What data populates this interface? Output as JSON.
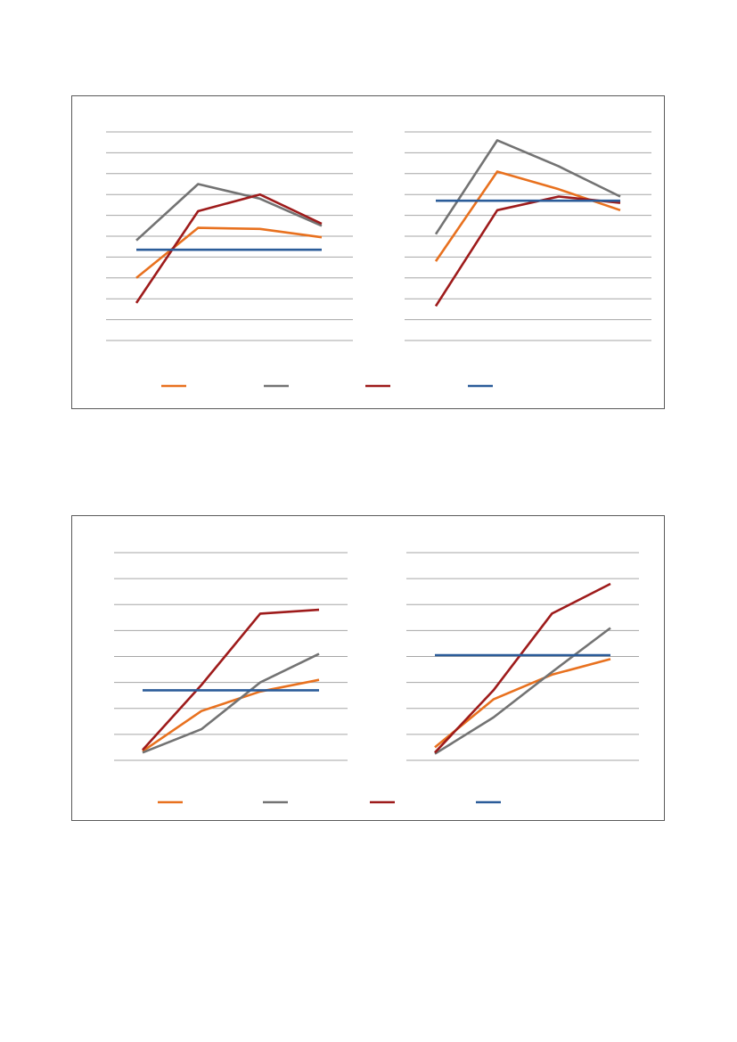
{
  "colors": {
    "orange": "#E8711F",
    "gray": "#737373",
    "darkred": "#9E1B1B",
    "blue": "#2B5C99",
    "grid": "#A6A6A6",
    "border": "#595959"
  },
  "figures": [
    {
      "legend": [
        {
          "color": "#E8711F"
        },
        {
          "color": "#737373"
        },
        {
          "color": "#9E1B1B"
        },
        {
          "color": "#2B5C99"
        }
      ],
      "chart_data": [
        {
          "type": "line",
          "x": [
            1,
            2,
            3,
            4
          ],
          "ylim": [
            0,
            10
          ],
          "grid": true,
          "series": [
            {
              "color": "#E8711F",
              "values": [
                3.0,
                5.4,
                5.35,
                4.95
              ]
            },
            {
              "color": "#737373",
              "values": [
                4.8,
                7.5,
                6.8,
                5.5
              ]
            },
            {
              "color": "#9E1B1B",
              "values": [
                1.8,
                6.2,
                7.0,
                5.6
              ]
            },
            {
              "color": "#2B5C99",
              "values": [
                4.35,
                4.35,
                4.35,
                4.35
              ]
            }
          ]
        },
        {
          "type": "line",
          "x": [
            1,
            2,
            3,
            4
          ],
          "ylim": [
            0,
            10
          ],
          "grid": true,
          "series": [
            {
              "color": "#E8711F",
              "values": [
                3.8,
                8.1,
                7.25,
                6.25
              ]
            },
            {
              "color": "#737373",
              "values": [
                5.1,
                9.6,
                8.35,
                6.9
              ]
            },
            {
              "color": "#9E1B1B",
              "values": [
                1.65,
                6.25,
                6.9,
                6.6
              ]
            },
            {
              "color": "#2B5C99",
              "values": [
                6.7,
                6.7,
                6.7,
                6.7
              ]
            }
          ]
        }
      ]
    },
    {
      "legend": [
        {
          "color": "#E8711F"
        },
        {
          "color": "#737373"
        },
        {
          "color": "#9E1B1B"
        },
        {
          "color": "#2B5C99"
        }
      ],
      "chart_data": [
        {
          "type": "line",
          "x": [
            1,
            2,
            3,
            4
          ],
          "ylim": [
            0,
            8
          ],
          "grid": true,
          "series": [
            {
              "color": "#E8711F",
              "values": [
                0.35,
                1.9,
                2.65,
                3.1
              ]
            },
            {
              "color": "#737373",
              "values": [
                0.3,
                1.2,
                3.0,
                4.1
              ]
            },
            {
              "color": "#9E1B1B",
              "values": [
                0.4,
                2.9,
                5.65,
                5.8
              ]
            },
            {
              "color": "#2B5C99",
              "values": [
                2.7,
                2.7,
                2.7,
                2.7
              ]
            }
          ]
        },
        {
          "type": "line",
          "x": [
            1,
            2,
            3,
            4
          ],
          "ylim": [
            0,
            8
          ],
          "grid": true,
          "series": [
            {
              "color": "#E8711F",
              "values": [
                0.5,
                2.35,
                3.3,
                3.9
              ]
            },
            {
              "color": "#737373",
              "values": [
                0.25,
                1.65,
                3.4,
                5.1
              ]
            },
            {
              "color": "#9E1B1B",
              "values": [
                0.3,
                2.7,
                5.65,
                6.8
              ]
            },
            {
              "color": "#2B5C99",
              "values": [
                4.05,
                4.05,
                4.05,
                4.05
              ]
            }
          ]
        }
      ]
    }
  ]
}
